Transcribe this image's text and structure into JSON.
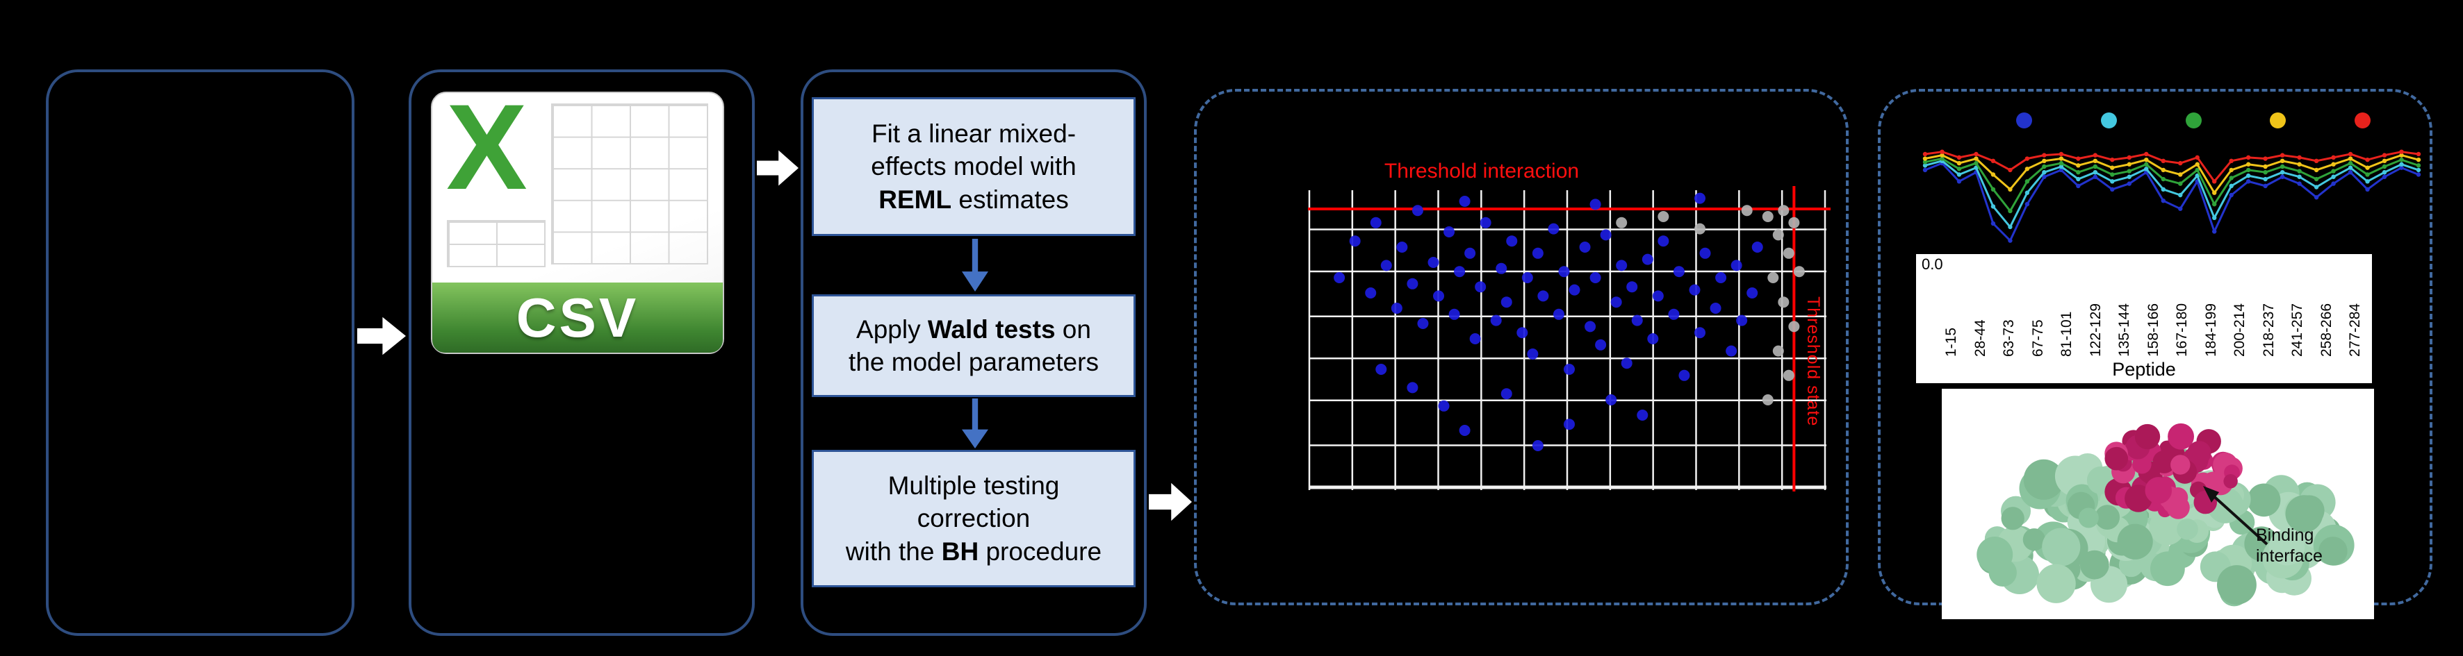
{
  "figure": {
    "csv": {
      "x_logo": "X",
      "label": "CSV"
    },
    "steps": {
      "box1": {
        "pre": "Fit a linear mixed-\neffects model with\n",
        "bold": "REML",
        "post": " estimates"
      },
      "box2": {
        "pre": "Apply ",
        "bold": "Wald tests",
        "post": " on\nthe model parameters"
      },
      "box3": {
        "pre": "Multiple testing\ncorrection\nwith the ",
        "bold": "BH",
        "post": " procedure"
      }
    },
    "volcano": {
      "title": "Threshold interaction",
      "side_label": "Threshold state"
    },
    "hdx": {
      "ytick": "0.0",
      "xlabel": "Peptide",
      "annotation": "Binding interface"
    }
  },
  "colors": {
    "panel_border": "#2e4d80",
    "dashed_border": "#41699f",
    "step_fill": "#dbe5f3",
    "step_border": "#2e5597",
    "flow_arrow": "#ffffff",
    "step_arrow": "#4472c4",
    "threshold_red": "#ff0000",
    "grid_white": "#f2f2f2",
    "point_blue": "#1c1ce0",
    "point_gray": "#b3b3b3",
    "protein_surface": [
      "#9ccfae",
      "#8ac49e",
      "#add8bc",
      "#7fb992",
      "#a5d4b4"
    ],
    "protein_interface": [
      "#c72572",
      "#b51d63",
      "#d63a82",
      "#ab1958"
    ]
  },
  "chart_data": [
    {
      "id": "threshold-scatter",
      "type": "scatter",
      "title": "Threshold interaction",
      "side_label": "Threshold state",
      "grid": {
        "cols": 12,
        "rows": 7,
        "color": "#f2f2f2",
        "on": true
      },
      "hline_y_pct": 7.5,
      "vline_x_pct": 93,
      "series": [
        {
          "name": "blue",
          "color": "#1c1ce0",
          "points": [
            [
              6,
              30
            ],
            [
              9,
              18
            ],
            [
              12,
              35
            ],
            [
              13,
              12
            ],
            [
              15,
              26
            ],
            [
              17,
              40
            ],
            [
              18,
              20
            ],
            [
              20,
              32
            ],
            [
              21,
              8
            ],
            [
              22,
              45
            ],
            [
              24,
              25
            ],
            [
              25,
              36
            ],
            [
              27,
              15
            ],
            [
              28,
              42
            ],
            [
              29,
              28
            ],
            [
              31,
              22
            ],
            [
              32,
              50
            ],
            [
              33,
              33
            ],
            [
              34,
              12
            ],
            [
              36,
              44
            ],
            [
              37,
              27
            ],
            [
              38,
              38
            ],
            [
              39,
              18
            ],
            [
              41,
              48
            ],
            [
              42,
              30
            ],
            [
              43,
              55
            ],
            [
              44,
              22
            ],
            [
              45,
              36
            ],
            [
              47,
              14
            ],
            [
              48,
              42
            ],
            [
              49,
              28
            ],
            [
              50,
              60
            ],
            [
              51,
              34
            ],
            [
              53,
              20
            ],
            [
              54,
              46
            ],
            [
              55,
              30
            ],
            [
              56,
              52
            ],
            [
              57,
              16
            ],
            [
              59,
              38
            ],
            [
              60,
              26
            ],
            [
              61,
              58
            ],
            [
              62,
              33
            ],
            [
              63,
              44
            ],
            [
              65,
              24
            ],
            [
              66,
              50
            ],
            [
              67,
              36
            ],
            [
              68,
              18
            ],
            [
              70,
              42
            ],
            [
              71,
              28
            ],
            [
              72,
              62
            ],
            [
              74,
              34
            ],
            [
              75,
              48
            ],
            [
              76,
              22
            ],
            [
              78,
              40
            ],
            [
              79,
              30
            ],
            [
              81,
              54
            ],
            [
              82,
              26
            ],
            [
              83,
              44
            ],
            [
              85,
              35
            ],
            [
              86,
              20
            ],
            [
              26,
              72
            ],
            [
              38,
              68
            ],
            [
              50,
              78
            ],
            [
              58,
              70
            ],
            [
              44,
              85
            ],
            [
              64,
              75
            ],
            [
              30,
              80
            ],
            [
              14,
              60
            ],
            [
              20,
              66
            ],
            [
              30,
              5
            ],
            [
              55,
              6
            ],
            [
              75,
              4
            ]
          ]
        },
        {
          "name": "gray",
          "color": "#b3b3b3",
          "points": [
            [
              88,
              10
            ],
            [
              90,
              16
            ],
            [
              92,
              22
            ],
            [
              89,
              30
            ],
            [
              91,
              38
            ],
            [
              93,
              46
            ],
            [
              90,
              54
            ],
            [
              92,
              62
            ],
            [
              88,
              70
            ],
            [
              94,
              28
            ],
            [
              93,
              12
            ],
            [
              91,
              8
            ],
            [
              60,
              12
            ],
            [
              68,
              10
            ],
            [
              75,
              14
            ],
            [
              84,
              8
            ]
          ]
        }
      ]
    },
    {
      "id": "uptake-profiles",
      "type": "line",
      "ylim": [
        0,
        1
      ],
      "ytick_label": "0.0",
      "xlabel": "Peptide",
      "legend_position": "top",
      "x_categories": [
        "1-15",
        "28-44",
        "63-73",
        "67-75",
        "81-101",
        "122-129",
        "135-144",
        "158-166",
        "167-180",
        "184-199",
        "200-214",
        "218-237",
        "241-257",
        "258-266",
        "277-284"
      ],
      "series": [
        {
          "name": "blue",
          "color": "#2233cc",
          "values": [
            0.72,
            0.78,
            0.62,
            0.7,
            0.25,
            0.1,
            0.42,
            0.66,
            0.72,
            0.58,
            0.66,
            0.55,
            0.6,
            0.7,
            0.45,
            0.38,
            0.62,
            0.18,
            0.5,
            0.62,
            0.58,
            0.66,
            0.6,
            0.48,
            0.6,
            0.7,
            0.55,
            0.66,
            0.74,
            0.68
          ]
        },
        {
          "name": "cyan",
          "color": "#44c8e0",
          "values": [
            0.76,
            0.8,
            0.68,
            0.74,
            0.4,
            0.22,
            0.52,
            0.7,
            0.75,
            0.64,
            0.7,
            0.62,
            0.66,
            0.73,
            0.55,
            0.5,
            0.67,
            0.3,
            0.58,
            0.67,
            0.64,
            0.7,
            0.66,
            0.57,
            0.66,
            0.74,
            0.62,
            0.7,
            0.77,
            0.72
          ]
        },
        {
          "name": "green",
          "color": "#2fa33a",
          "values": [
            0.79,
            0.82,
            0.73,
            0.78,
            0.55,
            0.36,
            0.62,
            0.75,
            0.78,
            0.7,
            0.75,
            0.68,
            0.71,
            0.77,
            0.64,
            0.6,
            0.72,
            0.42,
            0.65,
            0.72,
            0.7,
            0.75,
            0.71,
            0.64,
            0.71,
            0.78,
            0.68,
            0.75,
            0.81,
            0.76
          ]
        },
        {
          "name": "yellow",
          "color": "#f0c419",
          "values": [
            0.82,
            0.85,
            0.78,
            0.82,
            0.68,
            0.55,
            0.73,
            0.8,
            0.82,
            0.76,
            0.8,
            0.74,
            0.77,
            0.81,
            0.72,
            0.68,
            0.77,
            0.52,
            0.72,
            0.77,
            0.75,
            0.8,
            0.77,
            0.72,
            0.77,
            0.82,
            0.74,
            0.8,
            0.85,
            0.81
          ]
        },
        {
          "name": "red",
          "color": "#e8221c",
          "values": [
            0.86,
            0.88,
            0.83,
            0.86,
            0.8,
            0.72,
            0.82,
            0.85,
            0.86,
            0.82,
            0.85,
            0.81,
            0.83,
            0.86,
            0.8,
            0.78,
            0.83,
            0.62,
            0.8,
            0.83,
            0.82,
            0.85,
            0.83,
            0.8,
            0.83,
            0.86,
            0.81,
            0.85,
            0.88,
            0.86
          ]
        }
      ]
    }
  ]
}
